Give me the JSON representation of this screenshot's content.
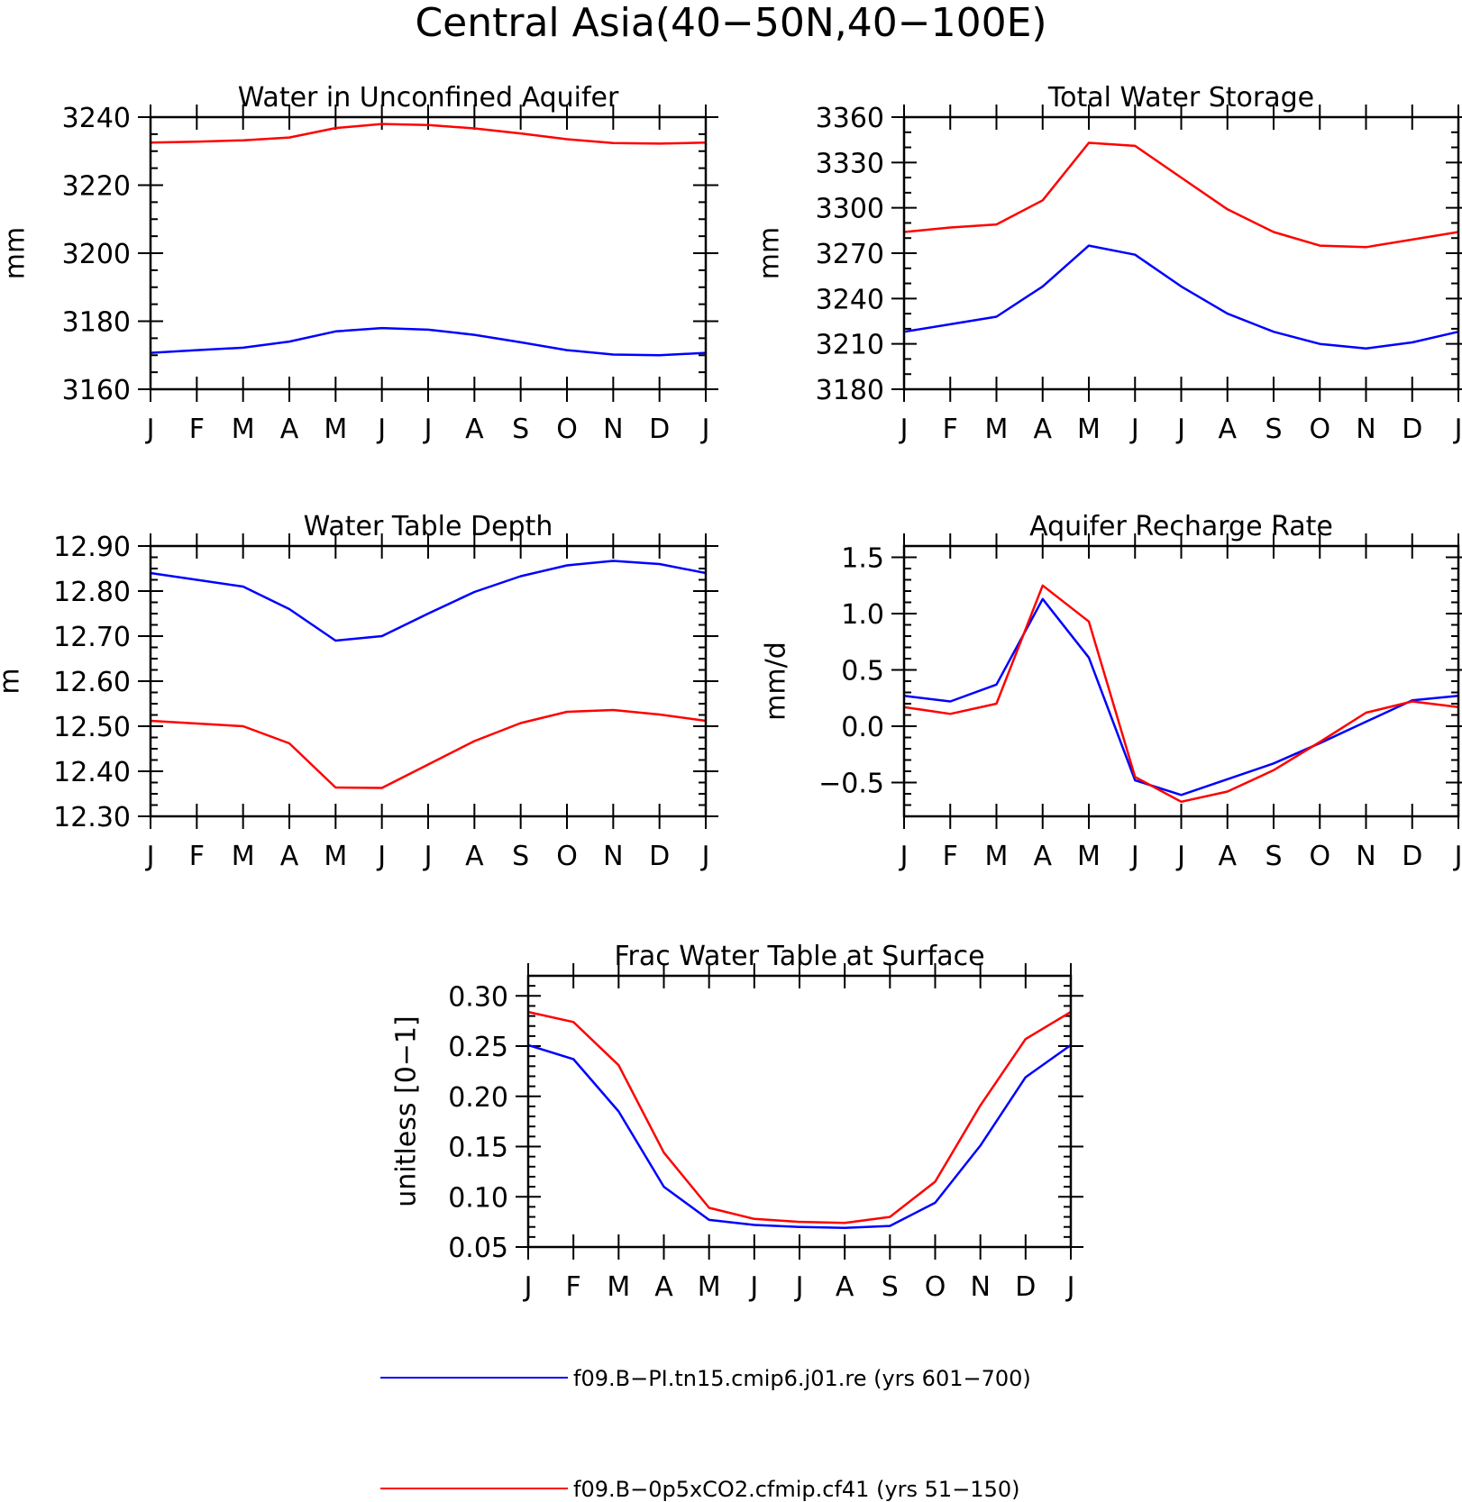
{
  "figure": {
    "title": "Central Asia(40−50N,40−100E)"
  },
  "colors": {
    "series_pi": "#0000ff",
    "series_co2": "#ff0000",
    "axes": "#000000"
  },
  "legend": {
    "placement": "bottom-center",
    "items": [
      {
        "label": "f09.B−PI.tn15.cmip6.j01.re (yrs 601−700)",
        "color": "#0000ff"
      },
      {
        "label": "f09.B−0p5xCO2.cfmip.cf41 (yrs 51−150)",
        "color": "#ff0000"
      }
    ]
  },
  "chart_data": [
    {
      "type": "line",
      "title": "Water in Unconfined Aquifer",
      "ylabel": "mm",
      "xlabel": "",
      "x": [
        "J",
        "F",
        "M",
        "A",
        "M",
        "J",
        "J",
        "A",
        "S",
        "O",
        "N",
        "D",
        "J"
      ],
      "ylim": [
        3160,
        3240
      ],
      "yticks": [
        3160,
        3180,
        3200,
        3220,
        3240
      ],
      "ytick_labels": [
        "3160",
        "3180",
        "3200",
        "3220",
        "3240"
      ],
      "yminor_step": 5,
      "grid": false,
      "series": [
        {
          "name": "f09.B−PI.tn15.cmip6.j01.re (yrs 601−700)",
          "color": "#0000ff",
          "values": [
            3170.7,
            3171.5,
            3172.2,
            3174.0,
            3177.0,
            3178.0,
            3177.5,
            3176.0,
            3173.8,
            3171.5,
            3170.2,
            3170.0,
            3170.7
          ]
        },
        {
          "name": "f09.B−0p5xCO2.cfmip.cf41 (yrs 51−150)",
          "color": "#ff0000",
          "values": [
            3232.5,
            3232.8,
            3233.2,
            3234.0,
            3236.8,
            3238.0,
            3237.7,
            3236.7,
            3235.2,
            3233.5,
            3232.4,
            3232.2,
            3232.5
          ]
        }
      ]
    },
    {
      "type": "line",
      "title": "Total Water Storage",
      "ylabel": "mm",
      "xlabel": "",
      "x": [
        "J",
        "F",
        "M",
        "A",
        "M",
        "J",
        "J",
        "A",
        "S",
        "O",
        "N",
        "D",
        "J"
      ],
      "ylim": [
        3180,
        3360
      ],
      "yticks": [
        3180,
        3210,
        3240,
        3270,
        3300,
        3330,
        3360
      ],
      "ytick_labels": [
        "3180",
        "3210",
        "3240",
        "3270",
        "3300",
        "3330",
        "3360"
      ],
      "yminor_step": 10,
      "grid": false,
      "series": [
        {
          "name": "f09.B−PI.tn15.cmip6.j01.re (yrs 601−700)",
          "color": "#0000ff",
          "values": [
            3218,
            3223,
            3228,
            3248,
            3275,
            3269,
            3248,
            3230,
            3218,
            3210,
            3207,
            3211,
            3218
          ]
        },
        {
          "name": "f09.B−0p5xCO2.cfmip.cf41 (yrs 51−150)",
          "color": "#ff0000",
          "values": [
            3284,
            3287,
            3289,
            3305,
            3343,
            3341,
            3320,
            3299,
            3284,
            3275,
            3274,
            3279,
            3284
          ]
        }
      ]
    },
    {
      "type": "line",
      "title": "Water Table Depth",
      "ylabel": "m",
      "xlabel": "",
      "x": [
        "J",
        "F",
        "M",
        "A",
        "M",
        "J",
        "J",
        "A",
        "S",
        "O",
        "N",
        "D",
        "J"
      ],
      "ylim": [
        12.3,
        12.9
      ],
      "yticks": [
        12.3,
        12.4,
        12.5,
        12.6,
        12.7,
        12.8,
        12.9
      ],
      "ytick_labels": [
        "12.30",
        "12.40",
        "12.50",
        "12.60",
        "12.70",
        "12.80",
        "12.90"
      ],
      "yminor_step": 0.025,
      "grid": false,
      "series": [
        {
          "name": "f09.B−PI.tn15.cmip6.j01.re (yrs 601−700)",
          "color": "#0000ff",
          "values": [
            12.84,
            12.825,
            12.81,
            12.76,
            12.69,
            12.7,
            12.75,
            12.798,
            12.833,
            12.857,
            12.867,
            12.86,
            12.84
          ]
        },
        {
          "name": "f09.B−0p5xCO2.cfmip.cf41 (yrs 51−150)",
          "color": "#ff0000",
          "values": [
            12.512,
            12.506,
            12.5,
            12.462,
            12.364,
            12.363,
            12.415,
            12.467,
            12.507,
            12.532,
            12.536,
            12.526,
            12.512
          ]
        }
      ]
    },
    {
      "type": "line",
      "title": "Aquifer Recharge Rate",
      "ylabel": "mm/d",
      "xlabel": "",
      "x": [
        "J",
        "F",
        "M",
        "A",
        "M",
        "J",
        "J",
        "A",
        "S",
        "O",
        "N",
        "D",
        "J"
      ],
      "ylim": [
        -0.8,
        1.6
      ],
      "yticks": [
        -0.5,
        0.0,
        0.5,
        1.0,
        1.5
      ],
      "ytick_labels": [
        "−0.5",
        "0.0",
        "0.5",
        "1.0",
        "1.5"
      ],
      "yminor_step": 0.1,
      "grid": false,
      "series": [
        {
          "name": "f09.B−PI.tn15.cmip6.j01.re (yrs 601−700)",
          "color": "#0000ff",
          "values": [
            0.27,
            0.22,
            0.37,
            1.13,
            0.61,
            -0.48,
            -0.61,
            -0.47,
            -0.33,
            -0.15,
            0.04,
            0.23,
            0.27
          ]
        },
        {
          "name": "f09.B−0p5xCO2.cfmip.cf41 (yrs 51−150)",
          "color": "#ff0000",
          "values": [
            0.17,
            0.11,
            0.2,
            1.25,
            0.93,
            -0.45,
            -0.67,
            -0.58,
            -0.39,
            -0.14,
            0.12,
            0.22,
            0.17
          ]
        }
      ]
    },
    {
      "type": "line",
      "title": "Frac Water Table at Surface",
      "ylabel": "unitless [0−1]",
      "xlabel": "",
      "x": [
        "J",
        "F",
        "M",
        "A",
        "M",
        "J",
        "J",
        "A",
        "S",
        "O",
        "N",
        "D",
        "J"
      ],
      "ylim": [
        0.05,
        0.32
      ],
      "yticks": [
        0.05,
        0.1,
        0.15,
        0.2,
        0.25,
        0.3
      ],
      "ytick_labels": [
        "0.05",
        "0.10",
        "0.15",
        "0.20",
        "0.25",
        "0.30"
      ],
      "yminor_step": 0.01,
      "grid": false,
      "series": [
        {
          "name": "f09.B−PI.tn15.cmip6.j01.re (yrs 601−700)",
          "color": "#0000ff",
          "values": [
            0.251,
            0.237,
            0.185,
            0.11,
            0.077,
            0.072,
            0.07,
            0.069,
            0.071,
            0.094,
            0.151,
            0.219,
            0.251
          ]
        },
        {
          "name": "f09.B−0p5xCO2.cfmip.cf41 (yrs 51−150)",
          "color": "#ff0000",
          "values": [
            0.284,
            0.274,
            0.231,
            0.144,
            0.089,
            0.078,
            0.075,
            0.074,
            0.08,
            0.115,
            0.191,
            0.257,
            0.284
          ]
        }
      ]
    }
  ]
}
